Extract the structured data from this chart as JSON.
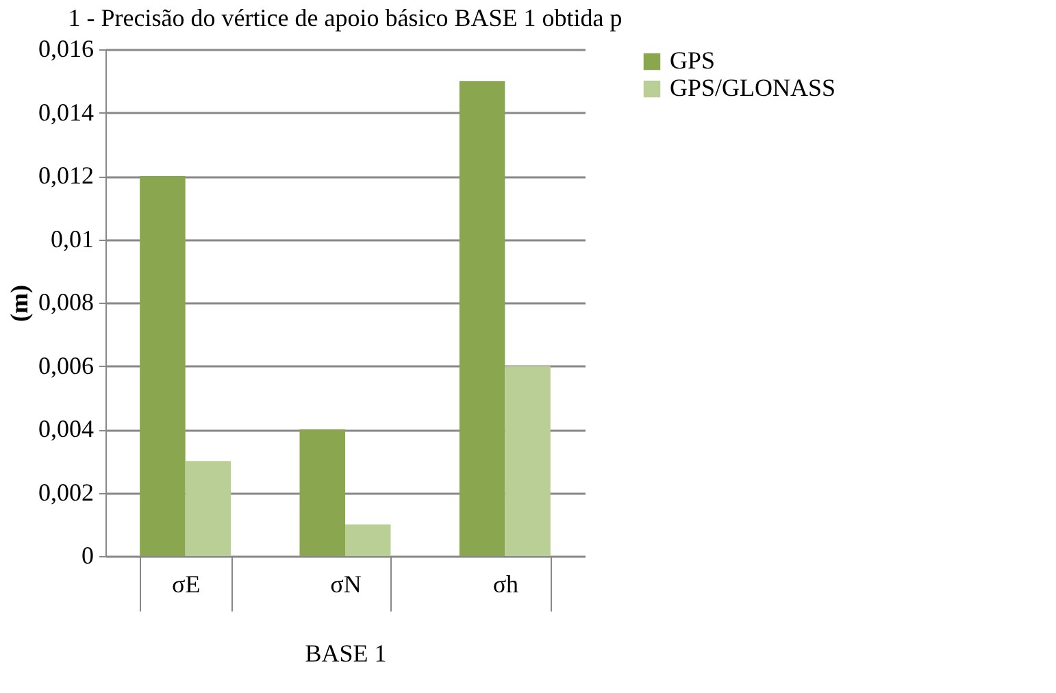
{
  "chart_data": {
    "type": "bar",
    "title": "1 - Precisão do vértice de apoio básico BASE 1 obtida p",
    "xlabel": "BASE 1",
    "ylabel": "(m)",
    "categories": [
      "σE",
      "σN",
      "σh"
    ],
    "series": [
      {
        "name": "GPS",
        "color": "#8aa64f",
        "values": [
          0.012,
          0.004,
          0.015
        ]
      },
      {
        "name": "GPS/GLONASS",
        "color": "#b9cf96",
        "values": [
          0.003,
          0.001,
          0.006
        ]
      }
    ],
    "ylim": [
      0,
      0.016
    ],
    "yticks": [
      {
        "value": 0,
        "label": "0"
      },
      {
        "value": 0.002,
        "label": "0,002"
      },
      {
        "value": 0.004,
        "label": "0,004"
      },
      {
        "value": 0.006,
        "label": "0,006"
      },
      {
        "value": 0.008,
        "label": "0,008"
      },
      {
        "value": 0.01,
        "label": "0,01"
      },
      {
        "value": 0.012,
        "label": "0,012"
      },
      {
        "value": 0.014,
        "label": "0,014"
      },
      {
        "value": 0.016,
        "label": "0,016"
      }
    ],
    "grid": "y",
    "legend": "right"
  }
}
